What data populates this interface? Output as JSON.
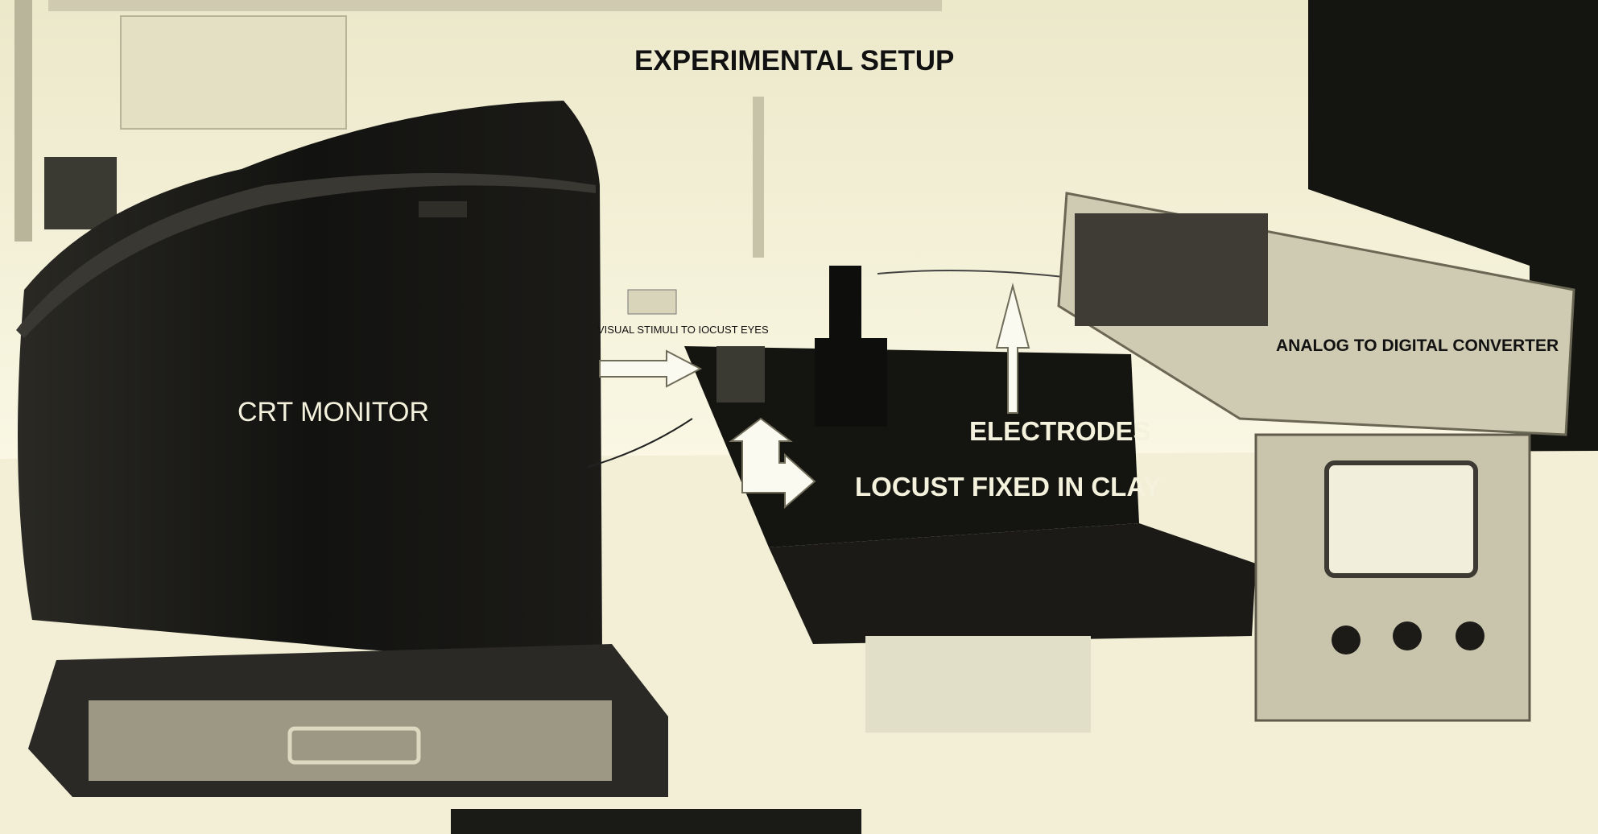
{
  "title": "EXPERIMENTAL SETUP",
  "labels": {
    "crt_monitor": "CRT MONITOR",
    "visual_stimuli": "VISUAL STIMULI TO IOCUST EYES",
    "adc": "ANALOG TO DIGITAL CONVERTER",
    "electrodes": "ELECTRODES",
    "locust": "LOCUST FIXED IN CLAY"
  },
  "colors": {
    "background": "#f8f5dc",
    "equipment_dark": "#141410",
    "equipment_gray": "#bdb9a4",
    "arrow": "#fbfaf0"
  }
}
